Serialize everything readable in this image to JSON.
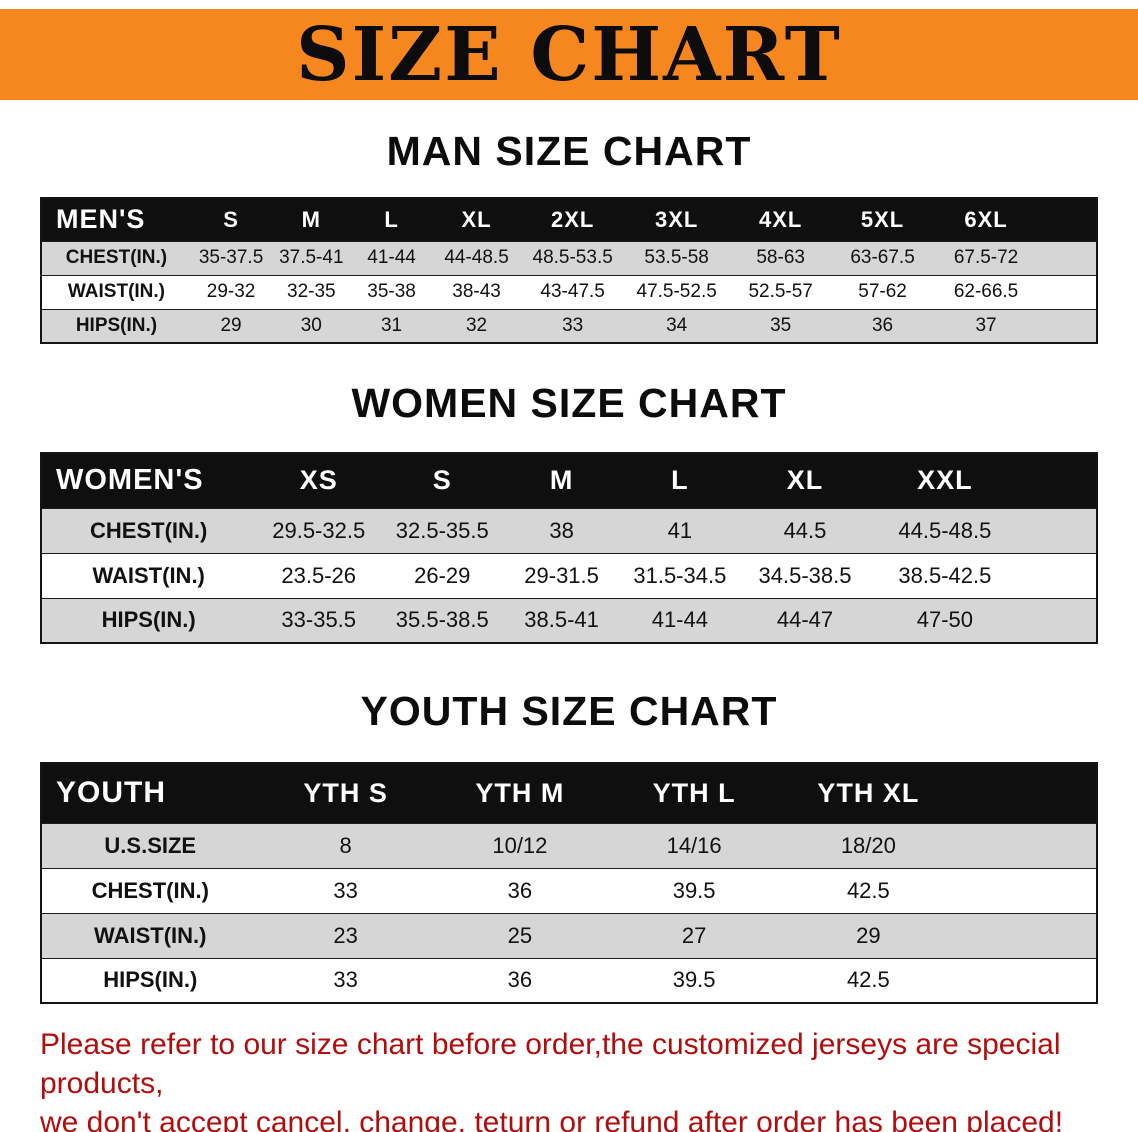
{
  "banner": {
    "title": "SIZE CHART"
  },
  "colors": {
    "banner_bg": "#f6871f",
    "header_bg": "#0f0f0f",
    "row_alt": "#d6d6d6",
    "footer_red": "#b20d0d",
    "text": "#111111"
  },
  "chart_data": [
    {
      "type": "table",
      "title": "MAN SIZE CHART",
      "columns": [
        "MEN'S",
        "S",
        "M",
        "L",
        "XL",
        "2XL",
        "3XL",
        "4XL",
        "5XL",
        "6XL"
      ],
      "rows": [
        [
          "CHEST(IN.)",
          "35-37.5",
          "37.5-41",
          "41-44",
          "44-48.5",
          "48.5-53.5",
          "53.5-58",
          "58-63",
          "63-67.5",
          "67.5-72"
        ],
        [
          "WAIST(IN.)",
          "29-32",
          "32-35",
          "35-38",
          "38-43",
          "43-47.5",
          "47.5-52.5",
          "52.5-57",
          "57-62",
          "62-66.5"
        ],
        [
          "HIPS(IN.)",
          "29",
          "30",
          "31",
          "32",
          "33",
          "34",
          "35",
          "36",
          "37"
        ]
      ]
    },
    {
      "type": "table",
      "title": "WOMEN SIZE CHART",
      "columns": [
        "WOMEN'S",
        "XS",
        "S",
        "M",
        "L",
        "XL",
        "XXL"
      ],
      "rows": [
        [
          "CHEST(IN.)",
          "29.5-32.5",
          "32.5-35.5",
          "38",
          "41",
          "44.5",
          "44.5-48.5"
        ],
        [
          "WAIST(IN.)",
          "23.5-26",
          "26-29",
          "29-31.5",
          "31.5-34.5",
          "34.5-38.5",
          "38.5-42.5"
        ],
        [
          "HIPS(IN.)",
          "33-35.5",
          "35.5-38.5",
          "38.5-41",
          "41-44",
          "44-47",
          "47-50"
        ]
      ]
    },
    {
      "type": "table",
      "title": "YOUTH SIZE CHART",
      "columns": [
        "YOUTH",
        "YTH S",
        "YTH M",
        "YTH L",
        "YTH XL"
      ],
      "rows": [
        [
          "U.S.SIZE",
          "8",
          "10/12",
          "14/16",
          "18/20"
        ],
        [
          "CHEST(IN.)",
          "33",
          "36",
          "39.5",
          "42.5"
        ],
        [
          "WAIST(IN.)",
          "23",
          "25",
          "27",
          "29"
        ],
        [
          "HIPS(IN.)",
          "33",
          "36",
          "39.5",
          "42.5"
        ]
      ]
    }
  ],
  "footer": {
    "line1": "Please refer to our size chart before order,the customized jerseys are special products,",
    "line2": "we don't accept cancel, change, teturn or refund after order has been placed!"
  }
}
